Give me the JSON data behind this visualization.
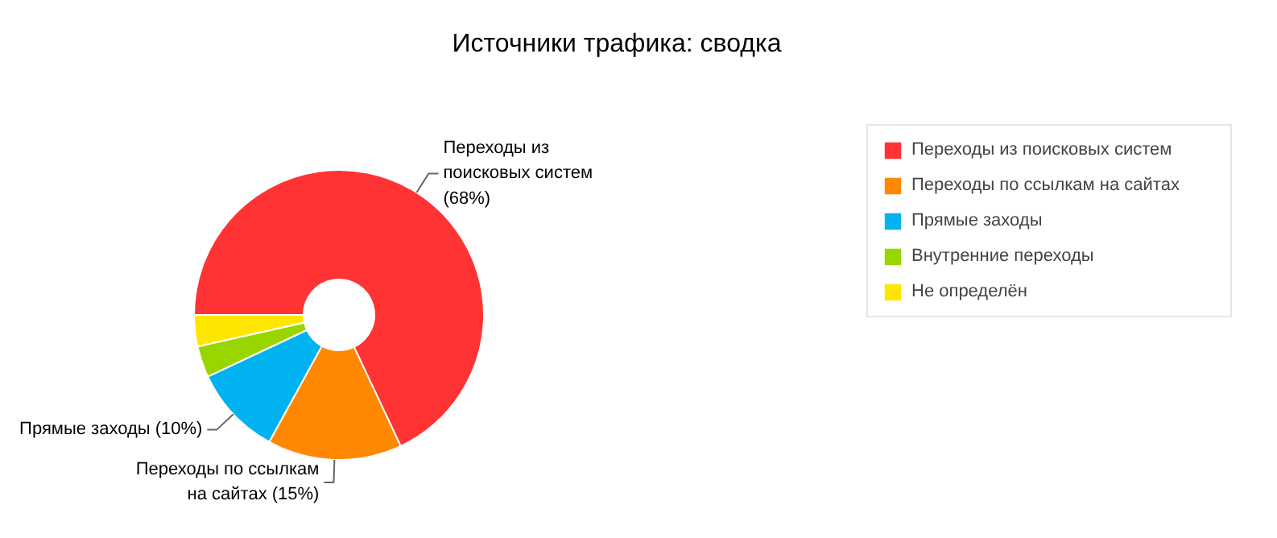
{
  "chart_data": {
    "type": "donut",
    "title": "Источники трафика: сводка",
    "categories": [
      "Переходы из поисковых систем",
      "Переходы по ссылкам на сайтах",
      "Прямые заходы",
      "Внутренние переходы",
      "Не определён"
    ],
    "values": [
      68,
      15,
      10,
      3.5,
      3.5
    ],
    "colors": [
      "#ff3333",
      "#ff8800",
      "#00b2f0",
      "#99d600",
      "#ffe600"
    ],
    "value_labels": [
      "Переходы из\nпоисковых систем\n(68%)",
      "Переходы по ссылкам\nна сайтах (15%)",
      "Прямые заходы (10%)",
      null,
      null
    ],
    "legend": "right"
  }
}
